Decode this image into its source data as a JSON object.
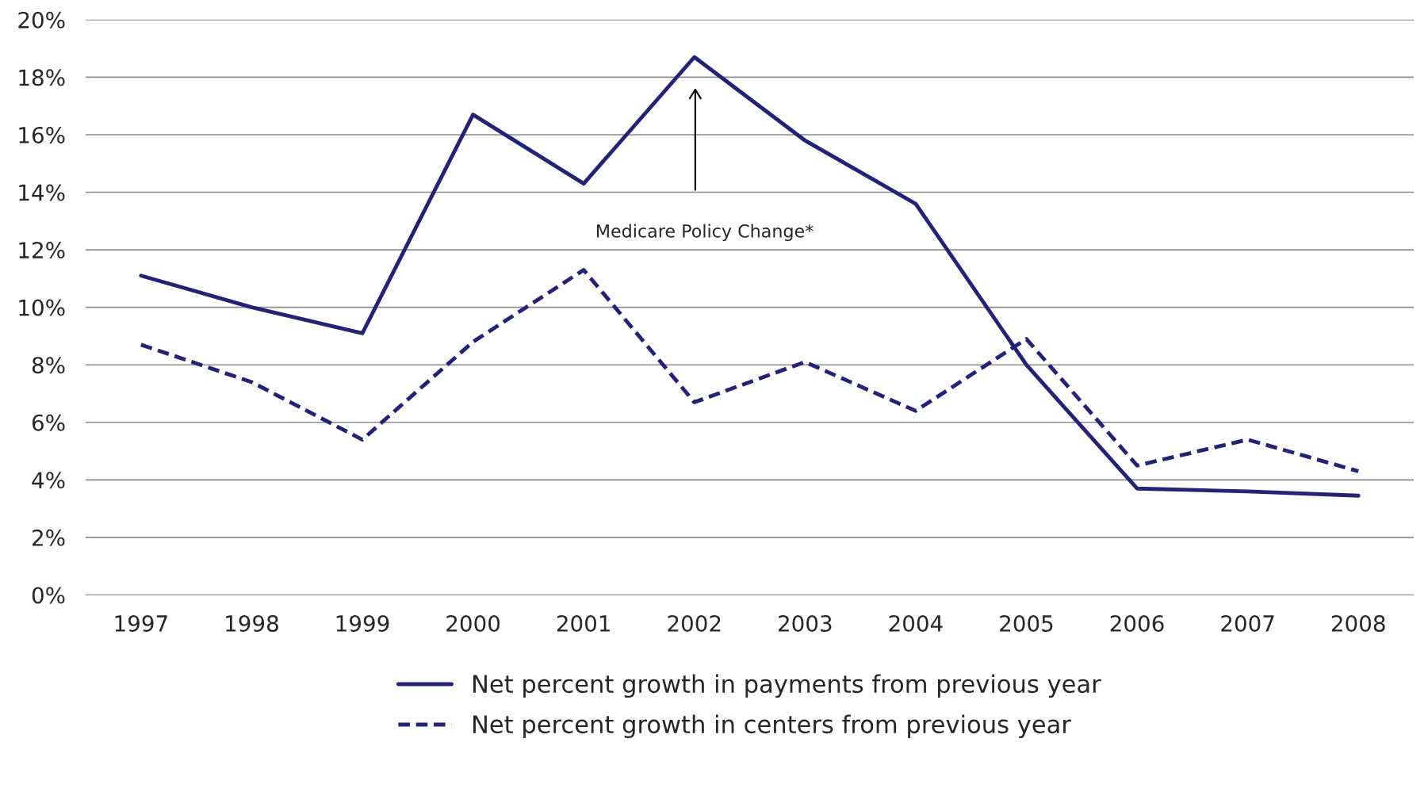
{
  "chart_data": {
    "type": "line",
    "categories": [
      "1997",
      "1998",
      "1999",
      "2000",
      "2001",
      "2002",
      "2003",
      "2004",
      "2005",
      "2006",
      "2007",
      "2008"
    ],
    "series": [
      {
        "name": "Net percent growth in payments from previous year",
        "color": "#232376",
        "line_style": "solid",
        "values": [
          11.1,
          10.0,
          9.1,
          16.7,
          14.3,
          18.7,
          15.8,
          13.6,
          8.0,
          3.7,
          3.6,
          3.45
        ]
      },
      {
        "name": "Net percent growth in centers from previous year",
        "color": "#232376",
        "line_style": "dashed",
        "values": [
          8.7,
          7.4,
          5.4,
          8.8,
          11.3,
          6.7,
          8.1,
          6.4,
          8.9,
          4.5,
          5.4,
          4.3
        ]
      }
    ],
    "ylim": [
      0,
      20
    ],
    "yticks": [
      {
        "value": 0,
        "label": "0%"
      },
      {
        "value": 2,
        "label": "2%"
      },
      {
        "value": 4,
        "label": "4%"
      },
      {
        "value": 6,
        "label": "6%"
      },
      {
        "value": 8,
        "label": "8%"
      },
      {
        "value": 10,
        "label": "10%"
      },
      {
        "value": 12,
        "label": "12%"
      },
      {
        "value": 14,
        "label": "14%"
      },
      {
        "value": 16,
        "label": "16%"
      },
      {
        "value": 18,
        "label": "18%"
      },
      {
        "value": 20,
        "label": "20%"
      }
    ],
    "grid": "y",
    "legend": "bottom",
    "annotations": [
      "Medicare Policy Change*"
    ]
  }
}
